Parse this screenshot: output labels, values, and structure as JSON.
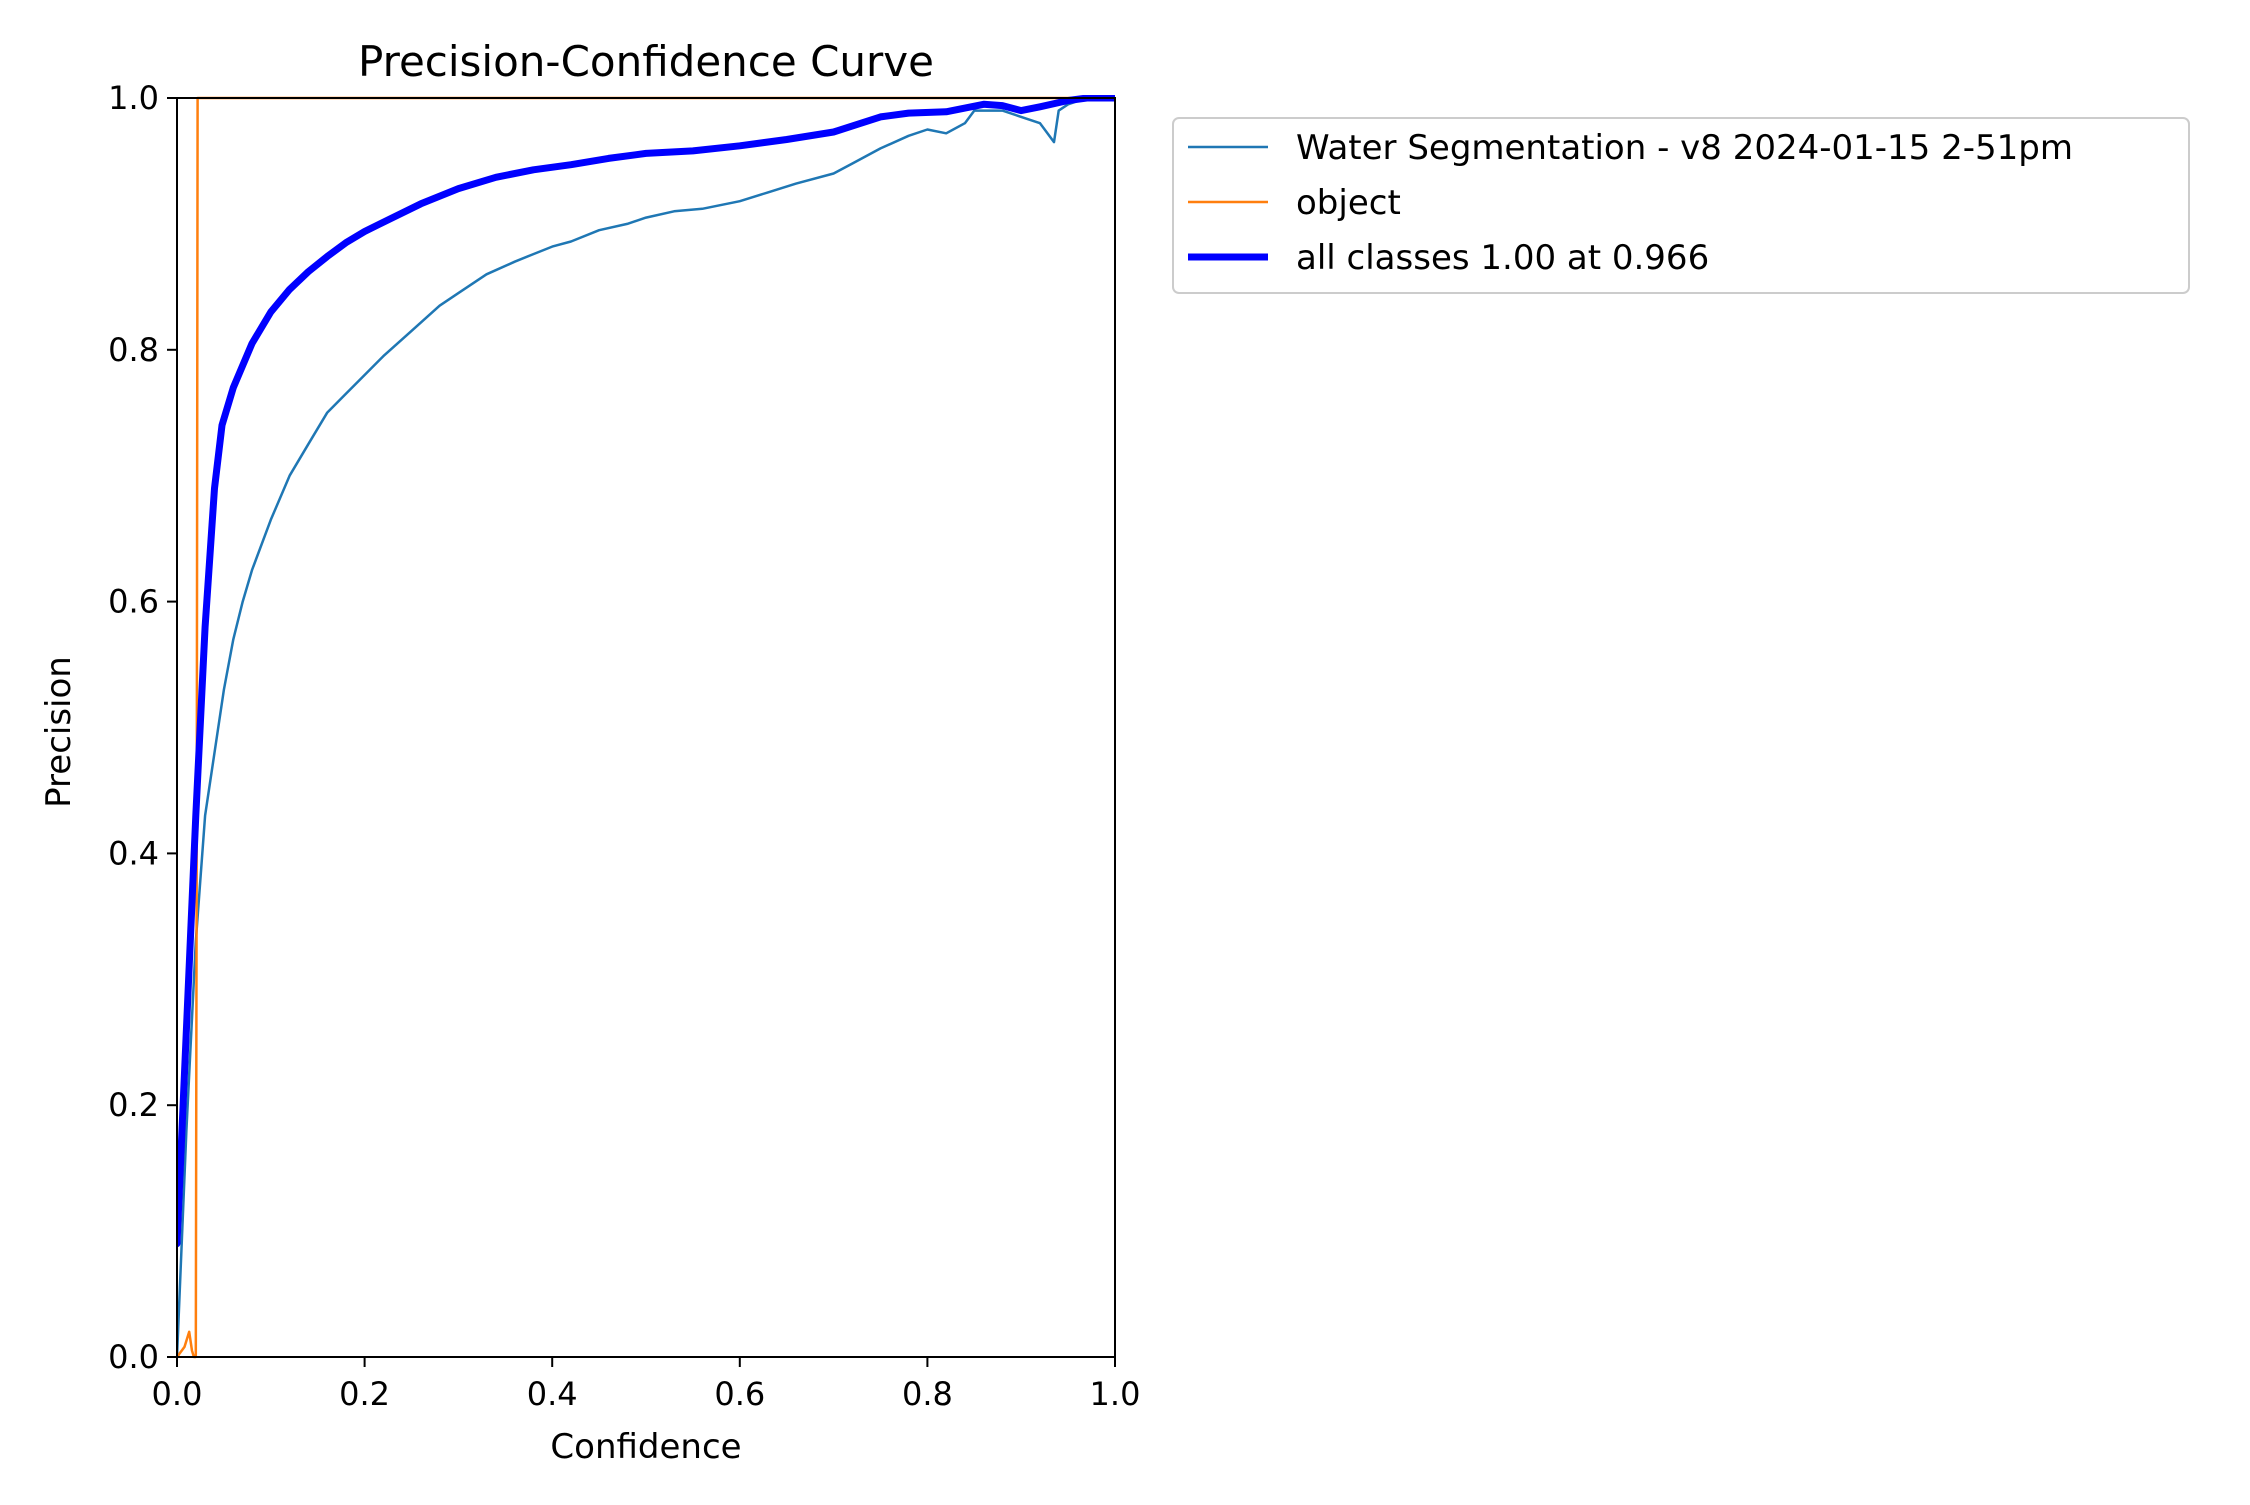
{
  "chart_data": {
    "type": "line",
    "title": "Precision-Confidence Curve",
    "xlabel": "Confidence",
    "ylabel": "Precision",
    "xlim": [
      0,
      1
    ],
    "ylim": [
      0,
      1
    ],
    "x_ticks": [
      "0.0",
      "0.2",
      "0.4",
      "0.6",
      "0.8",
      "1.0"
    ],
    "y_ticks": [
      "0.0",
      "0.2",
      "0.4",
      "0.6",
      "0.8",
      "1.0"
    ],
    "grid": false,
    "legend_position": "outside-upper-right",
    "series": [
      {
        "name": "Water Segmentation - v8 2024-01-15 2-51pm",
        "color": "#1f77b4",
        "x": [
          0.0,
          0.01,
          0.02,
          0.03,
          0.04,
          0.05,
          0.06,
          0.07,
          0.08,
          0.09,
          0.1,
          0.12,
          0.14,
          0.16,
          0.18,
          0.2,
          0.22,
          0.25,
          0.28,
          0.3,
          0.33,
          0.36,
          0.38,
          0.4,
          0.42,
          0.45,
          0.48,
          0.5,
          0.53,
          0.56,
          0.6,
          0.63,
          0.66,
          0.7,
          0.72,
          0.75,
          0.78,
          0.8,
          0.82,
          0.84,
          0.85,
          0.88,
          0.9,
          0.92,
          0.935,
          0.94,
          0.95,
          0.97,
          1.0
        ],
        "y": [
          0.0,
          0.18,
          0.33,
          0.43,
          0.48,
          0.53,
          0.57,
          0.6,
          0.625,
          0.645,
          0.665,
          0.7,
          0.725,
          0.75,
          0.765,
          0.78,
          0.795,
          0.815,
          0.835,
          0.845,
          0.86,
          0.87,
          0.876,
          0.882,
          0.886,
          0.895,
          0.9,
          0.905,
          0.91,
          0.912,
          0.918,
          0.925,
          0.932,
          0.94,
          0.948,
          0.96,
          0.97,
          0.975,
          0.972,
          0.98,
          0.99,
          0.99,
          0.985,
          0.98,
          0.965,
          0.99,
          0.995,
          1.0,
          1.0
        ]
      },
      {
        "name": "object",
        "color": "#ff7f0e",
        "x": [
          0.0,
          0.008,
          0.013,
          0.016,
          0.018,
          0.02,
          0.021,
          0.022,
          0.023,
          0.024,
          1.0
        ],
        "y": [
          0.0,
          0.008,
          0.02,
          0.005,
          0.0,
          0.0,
          0.4,
          1.0,
          1.0,
          1.0,
          1.0
        ]
      },
      {
        "name": "all classes 1.00 at 0.966",
        "color": "#0000ff",
        "x": [
          0.0,
          0.01,
          0.02,
          0.03,
          0.04,
          0.048,
          0.06,
          0.08,
          0.1,
          0.12,
          0.14,
          0.16,
          0.18,
          0.2,
          0.23,
          0.26,
          0.3,
          0.34,
          0.38,
          0.42,
          0.46,
          0.5,
          0.55,
          0.6,
          0.65,
          0.7,
          0.75,
          0.78,
          0.82,
          0.86,
          0.88,
          0.9,
          0.92,
          0.95,
          0.97,
          1.0
        ],
        "y": [
          0.09,
          0.26,
          0.43,
          0.58,
          0.69,
          0.74,
          0.77,
          0.805,
          0.83,
          0.848,
          0.862,
          0.874,
          0.885,
          0.894,
          0.905,
          0.916,
          0.928,
          0.937,
          0.943,
          0.947,
          0.952,
          0.956,
          0.958,
          0.962,
          0.967,
          0.973,
          0.985,
          0.988,
          0.989,
          0.995,
          0.994,
          0.99,
          0.993,
          0.998,
          1.0,
          1.0
        ]
      }
    ]
  }
}
